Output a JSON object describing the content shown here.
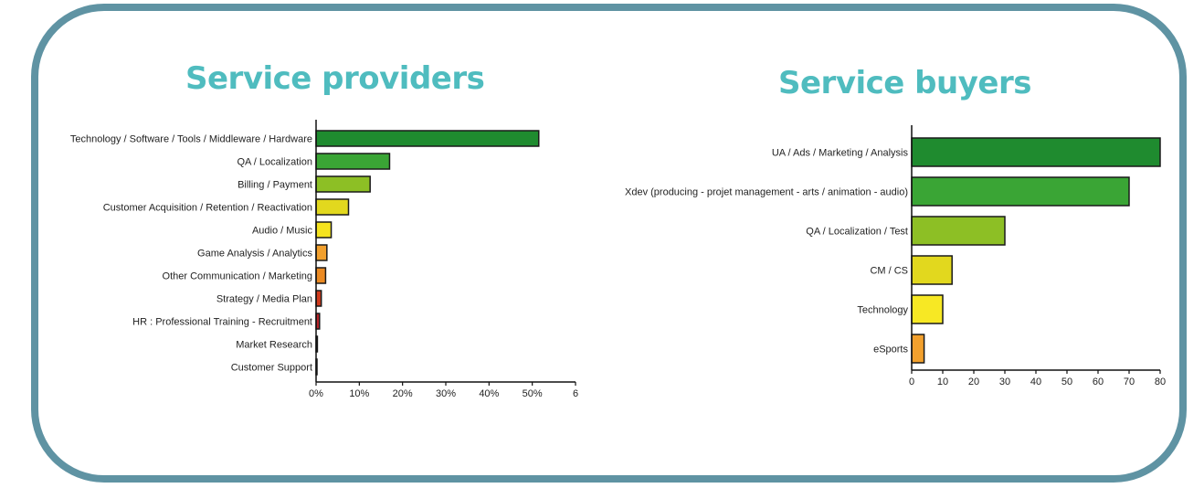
{
  "colors": {
    "frame": "#5f93a3",
    "title": "#4fbcbf",
    "palette": [
      "#1f8b2f",
      "#3aa535",
      "#8dbf25",
      "#e2d81e",
      "#f7e824",
      "#f2a02d",
      "#e5701d",
      "#d03a1c",
      "#b8242a",
      "#6d1f1f"
    ]
  },
  "chart_data": [
    {
      "type": "bar",
      "orientation": "horizontal",
      "title": "Service providers",
      "categories": [
        "Technology / Software / Tools / Middleware / Hardware",
        "QA / Localization",
        "Billing / Payment",
        "Customer Acquisition / Retention / Reactivation",
        "Audio / Music",
        "Game Analysis / Analytics",
        "Other Communication / Marketing",
        "Strategy / Media Plan",
        "HR :  Professional Training - Recruitment",
        "Market Research",
        "Customer Support"
      ],
      "values": [
        51.5,
        17,
        12.5,
        7.5,
        3.5,
        2.5,
        2.2,
        1.2,
        0.8,
        0.3,
        0.2
      ],
      "bar_colors": [
        "#1f8b2f",
        "#3aa535",
        "#8dbf25",
        "#e2d81e",
        "#f5e31f",
        "#f2a02d",
        "#eb8a22",
        "#d03a1c",
        "#b8242a",
        "#7a1f1f",
        "#333333"
      ],
      "x_ticks": [
        "0%",
        "10%",
        "20%",
        "30%",
        "40%",
        "50%",
        "6"
      ],
      "xlim": [
        0,
        60
      ],
      "grid": false
    },
    {
      "type": "bar",
      "orientation": "horizontal",
      "title": "Service buyers",
      "categories": [
        "UA / Ads / Marketing / Analysis",
        "Xdev (producing - projet management - arts / animation - audio)",
        "QA / Localization / Test",
        "CM / CS",
        "Technology",
        "eSports"
      ],
      "values": [
        80,
        70,
        30,
        13,
        10,
        4
      ],
      "bar_colors": [
        "#1f8b2f",
        "#3aa535",
        "#8dbf25",
        "#e2d81e",
        "#f7e824",
        "#f2a02d"
      ],
      "x_ticks": [
        "0",
        "10",
        "20",
        "30",
        "40",
        "50",
        "60",
        "70",
        "80"
      ],
      "xlim": [
        0,
        80
      ],
      "grid": false
    }
  ]
}
